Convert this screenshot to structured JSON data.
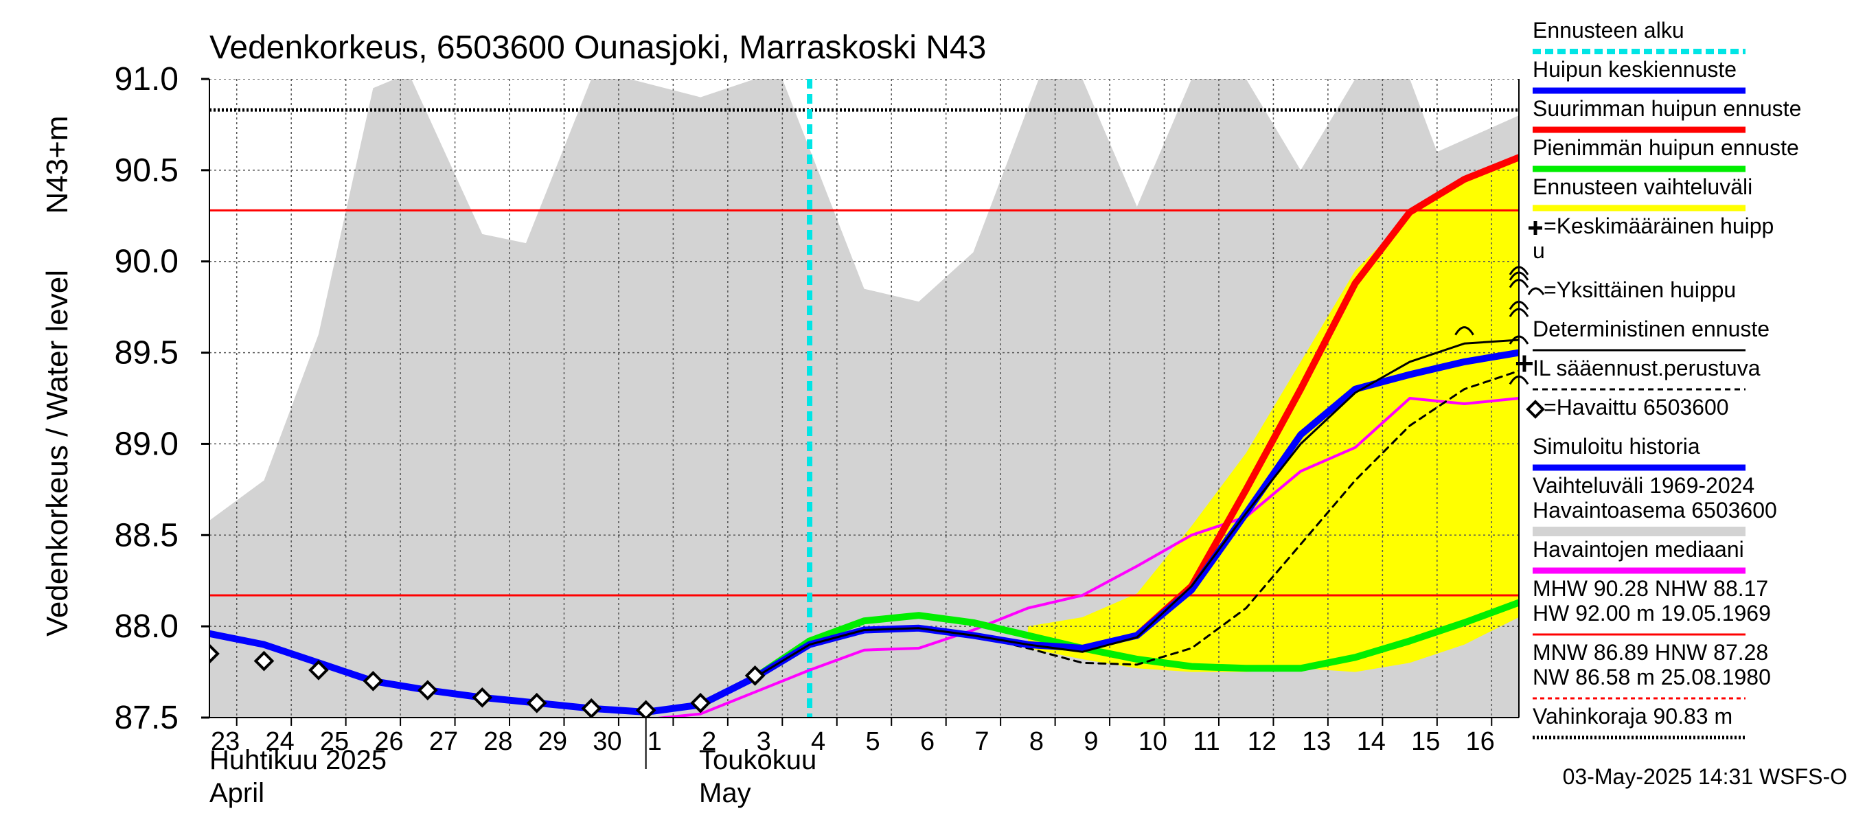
{
  "chart_data": {
    "type": "line",
    "title": "Vedenkorkeus, 6503600 Ounasjoki, Marraskoski N43",
    "ylabel_left": "Vedenkorkeus / Water level",
    "ylabel_right": "N43+m",
    "ylim": [
      87.5,
      91.0
    ],
    "xlim": [
      -0.5,
      23.5
    ],
    "yticks": [
      "87.5",
      "88.0",
      "88.5",
      "89.0",
      "89.5",
      "90.0",
      "90.5",
      "91.0"
    ],
    "x_day_labels": [
      "23",
      "24",
      "25",
      "26",
      "27",
      "28",
      "29",
      "30",
      "1",
      "2",
      "3",
      "4",
      "5",
      "6",
      "7",
      "8",
      "9",
      "10",
      "11",
      "12",
      "13",
      "14",
      "15",
      "16"
    ],
    "month_labels": {
      "april_fi": "Huhtikuu  2025",
      "april_en": "April",
      "may_fi": "Toukokuu",
      "may_en": "May"
    },
    "grid": true,
    "legend_placement": "right",
    "forecast_start_x": 10.5,
    "hline_values": {
      "mhw": 90.28,
      "nhw": 88.17,
      "damage_level": 90.83
    },
    "historical_range_upper": {
      "x": [
        -0.5,
        0.5,
        1.5,
        2.5,
        2.9,
        3.2,
        4.5,
        5.3,
        6.5,
        7.2,
        8.5,
        9.5,
        10.0,
        11.5,
        12.5,
        13.5,
        14.7,
        15.5,
        16.5,
        17.5,
        18.5,
        19.5,
        20.5,
        21.5,
        22.0,
        23.5
      ],
      "y": [
        88.58,
        88.8,
        89.6,
        90.95,
        91.0,
        91.0,
        90.15,
        90.1,
        91.0,
        91.0,
        90.9,
        91.0,
        91.0,
        89.85,
        89.78,
        90.05,
        91.0,
        91.0,
        90.3,
        91.0,
        91.0,
        90.5,
        91.0,
        91.0,
        90.6,
        90.8
      ]
    },
    "forecast_range": {
      "x": [
        14.5,
        15.5,
        16.5,
        17.5,
        18.5,
        19.5,
        20.5,
        21.5,
        22.5,
        23.5
      ],
      "upper": [
        88.0,
        88.05,
        88.18,
        88.55,
        88.95,
        89.45,
        89.95,
        90.25,
        90.45,
        90.55
      ],
      "lower": [
        87.88,
        87.82,
        87.77,
        87.75,
        87.75,
        87.77,
        87.75,
        87.8,
        87.9,
        88.05
      ]
    },
    "series": [
      {
        "name": "Simuloitu historia",
        "color": "#0000ff",
        "width": 10,
        "x": [
          -0.5,
          0.5,
          1.5,
          2.5,
          3.5,
          4.5,
          5.5,
          6.5,
          7.5,
          8.5,
          9.5
        ],
        "y": [
          87.96,
          87.9,
          87.8,
          87.7,
          87.65,
          87.61,
          87.58,
          87.55,
          87.53,
          87.57,
          87.72
        ]
      },
      {
        "name": "Huipun keskiennuste",
        "color": "#0000ff",
        "width": 10,
        "x": [
          9.5,
          10.5,
          11.5,
          12.5,
          13.5,
          14.5,
          15.5,
          16.5,
          17.5,
          18.5,
          19.5,
          20.5,
          21.5,
          22.5,
          23.5
        ],
        "y": [
          87.72,
          87.9,
          87.98,
          87.99,
          87.95,
          87.9,
          87.88,
          87.95,
          88.2,
          88.62,
          89.05,
          89.3,
          89.38,
          89.45,
          89.5
        ]
      },
      {
        "name": "Suurimman huipun ennuste",
        "color": "#ff0000",
        "width": 10,
        "x": [
          16.5,
          17.5,
          18.5,
          19.5,
          20.5,
          21.5,
          22.5,
          23.5
        ],
        "y": [
          87.95,
          88.22,
          88.75,
          89.3,
          89.88,
          90.27,
          90.45,
          90.57
        ]
      },
      {
        "name": "Pienimmän huipun ennuste",
        "color": "#00ee00",
        "width": 10,
        "x": [
          9.5,
          10.5,
          11.5,
          12.5,
          13.5,
          14.5,
          15.5,
          16.5,
          17.5,
          18.5,
          19.5,
          20.5,
          21.5,
          22.5,
          23.5
        ],
        "y": [
          87.72,
          87.92,
          88.03,
          88.06,
          88.02,
          87.95,
          87.88,
          87.82,
          87.78,
          87.77,
          87.77,
          87.83,
          87.92,
          88.02,
          88.13
        ]
      },
      {
        "name": "Deterministinen ennuste",
        "color": "#000000",
        "width": 3,
        "x": [
          9.5,
          10.5,
          11.5,
          12.5,
          13.5,
          14.5,
          15.5,
          16.5,
          17.5,
          18.5,
          19.5,
          20.5,
          21.5,
          22.5,
          23.5
        ],
        "y": [
          87.72,
          87.9,
          87.98,
          87.99,
          87.95,
          87.9,
          87.86,
          87.94,
          88.22,
          88.62,
          89.0,
          89.28,
          89.45,
          89.55,
          89.57
        ]
      },
      {
        "name": "IL sääennust.perustuva",
        "color": "#000000",
        "width": 3,
        "dashed": true,
        "x": [
          9.5,
          10.5,
          11.5,
          12.5,
          13.5,
          14.5,
          15.5,
          16.5,
          17.5,
          18.5,
          19.5,
          20.5,
          21.5,
          22.5,
          23.5
        ],
        "y": [
          87.72,
          87.9,
          87.98,
          87.99,
          87.95,
          87.88,
          87.8,
          87.79,
          87.88,
          88.1,
          88.45,
          88.8,
          89.1,
          89.3,
          89.4
        ]
      },
      {
        "name": "Havaintojen mediaani",
        "color": "#ff00ff",
        "width": 4,
        "x": [
          7.5,
          8.5,
          9.5,
          10.5,
          11.5,
          12.5,
          13.5,
          14.5,
          15.5,
          16.5,
          17.5,
          18.5,
          19.5,
          20.5,
          21.5,
          22.5,
          23.5
        ],
        "y": [
          87.49,
          87.52,
          87.64,
          87.76,
          87.87,
          87.88,
          87.98,
          88.1,
          88.17,
          88.33,
          88.5,
          88.6,
          88.85,
          88.98,
          89.25,
          89.22,
          89.25
        ]
      }
    ],
    "observed": {
      "name": "Havaittu 6503600",
      "x": [
        -0.5,
        0.5,
        1.5,
        2.5,
        3.5,
        4.5,
        5.5,
        6.5,
        7.5,
        8.5,
        9.5
      ],
      "y": [
        87.85,
        87.81,
        87.76,
        87.7,
        87.65,
        87.61,
        87.58,
        87.55,
        87.54,
        87.58,
        87.73
      ]
    },
    "single_peaks": {
      "x": [
        22.5,
        23.5,
        23.5,
        23.5,
        23.5,
        23.5,
        23.5,
        23.5
      ],
      "y": [
        89.62,
        89.95,
        89.92,
        89.88,
        89.76,
        89.72,
        89.57,
        89.35
      ]
    },
    "mean_peak": {
      "x": 23.6,
      "y": 89.44
    },
    "legend": [
      {
        "label": "Ennusteen alku",
        "style": "dotted",
        "color": "#00e5e5"
      },
      {
        "label": "Huipun keskiennuste",
        "style": "solid",
        "color": "#0000ff"
      },
      {
        "label": "Suurimman huipun ennuste",
        "style": "solid",
        "color": "#ff0000"
      },
      {
        "label": "Pienimmän huipun ennuste",
        "style": "solid",
        "color": "#00ee00"
      },
      {
        "label": "Ennusteen vaihteluväli",
        "style": "solid",
        "color": "#ffff00"
      },
      {
        "label": "=Keskimääräinen huipp",
        "label2": "u",
        "style": "marker-plus",
        "color": "#000000"
      },
      {
        "label": "=Yksittäinen huippu",
        "style": "marker-arc",
        "color": "#000000"
      },
      {
        "label": "Deterministinen ennuste",
        "style": "solid-thin",
        "color": "#000000"
      },
      {
        "label": "IL sääennust.perustuva",
        "style": "dashed",
        "color": "#000000"
      },
      {
        "label": "=Havaittu 6503600",
        "style": "marker-diamond",
        "color": "#000000"
      },
      {
        "label": "Simuloitu historia",
        "style": "solid",
        "color": "#0000ff"
      },
      {
        "label": "Vaihteluväli 1969-2024",
        "label2": " Havaintoasema 6503600",
        "style": "solid-thick",
        "color": "#d3d3d3"
      },
      {
        "label": "Havaintojen mediaani",
        "style": "solid",
        "color": "#ff00ff"
      },
      {
        "label": "MHW  90.28 NHW  88.17",
        "label2": "HW  92.00 m 19.05.1969",
        "style": "solid-thin",
        "color": "#ff0000"
      },
      {
        "label": "MNW  86.89 HNW  87.28",
        "label2": "NW  86.58 m 25.08.1980",
        "style": "dashed-thin",
        "color": "#ff0000"
      },
      {
        "label": "Vahinkoraja 90.83 m",
        "style": "dotted-thin",
        "color": "#000000"
      }
    ],
    "footer": "03-May-2025 14:31 WSFS-O"
  }
}
